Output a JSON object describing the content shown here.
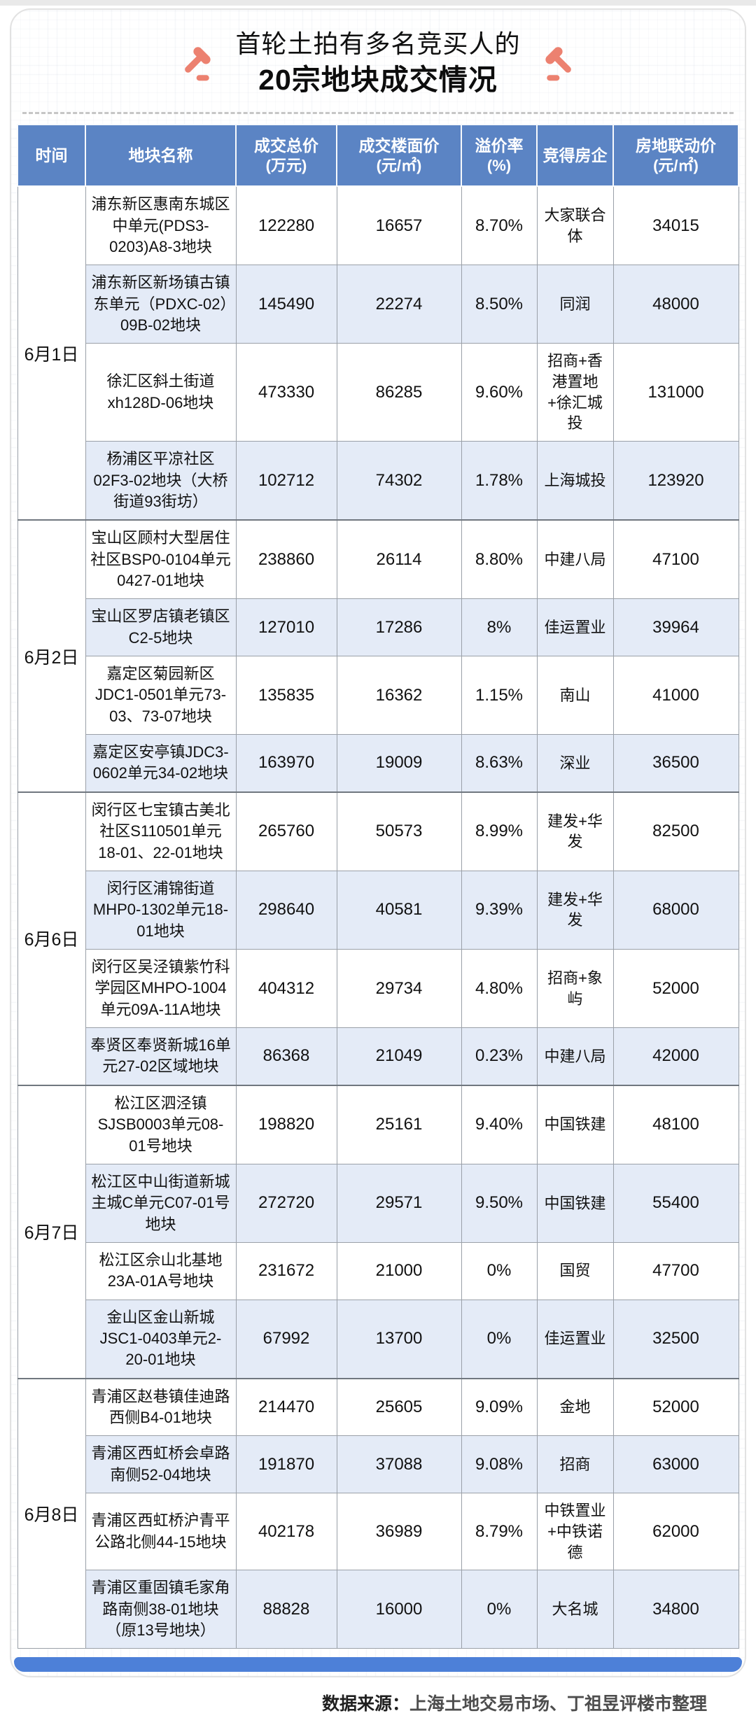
{
  "title": {
    "line1": "首轮土拍有多名竞买人的",
    "line2": "20宗地块成交情况"
  },
  "colors": {
    "accent_coral": "#ec8170",
    "header_blue": "#5b84c4",
    "alt_row_blue": "#e4ebf7",
    "bottom_bar_blue": "#4d80d8"
  },
  "table": {
    "headers": [
      {
        "label": "时间",
        "sub": ""
      },
      {
        "label": "地块名称",
        "sub": ""
      },
      {
        "label": "成交总价",
        "sub": "(万元)"
      },
      {
        "label": "成交楼面价",
        "sub": "(元/㎡)"
      },
      {
        "label": "溢价率",
        "sub": "(%)"
      },
      {
        "label": "竞得房企",
        "sub": ""
      },
      {
        "label": "房地联动价",
        "sub": "(元/㎡)"
      }
    ],
    "groups": [
      {
        "date": "6月1日",
        "rows": [
          {
            "name": "浦东新区惠南东城区中单元(PDS3-0203)A8-3地块",
            "total": "122280",
            "floor": "16657",
            "premium": "8.70%",
            "winner": "大家联合体",
            "linkage": "34015"
          },
          {
            "name": "浦东新区新场镇古镇东单元（PDXC-02）09B-02地块",
            "total": "145490",
            "floor": "22274",
            "premium": "8.50%",
            "winner": "同润",
            "linkage": "48000"
          },
          {
            "name": "徐汇区斜土街道xh128D-06地块",
            "total": "473330",
            "floor": "86285",
            "premium": "9.60%",
            "winner": "招商+香港置地+徐汇城投",
            "linkage": "131000"
          },
          {
            "name": "杨浦区平凉社区02F3-02地块（大桥街道93街坊）",
            "total": "102712",
            "floor": "74302",
            "premium": "1.78%",
            "winner": "上海城投",
            "linkage": "123920"
          }
        ]
      },
      {
        "date": "6月2日",
        "rows": [
          {
            "name": "宝山区顾村大型居住社区BSP0-0104单元0427-01地块",
            "total": "238860",
            "floor": "26114",
            "premium": "8.80%",
            "winner": "中建八局",
            "linkage": "47100"
          },
          {
            "name": "宝山区罗店镇老镇区C2-5地块",
            "total": "127010",
            "floor": "17286",
            "premium": "8%",
            "winner": "佳运置业",
            "linkage": "39964"
          },
          {
            "name": "嘉定区菊园新区JDC1-0501单元73-03、73-07地块",
            "total": "135835",
            "floor": "16362",
            "premium": "1.15%",
            "winner": "南山",
            "linkage": "41000"
          },
          {
            "name": "嘉定区安亭镇JDC3-0602单元34-02地块",
            "total": "163970",
            "floor": "19009",
            "premium": "8.63%",
            "winner": "深业",
            "linkage": "36500"
          }
        ]
      },
      {
        "date": "6月6日",
        "rows": [
          {
            "name": "闵行区七宝镇古美北社区S110501单元18-01、22-01地块",
            "total": "265760",
            "floor": "50573",
            "premium": "8.99%",
            "winner": "建发+华发",
            "linkage": "82500"
          },
          {
            "name": "闵行区浦锦街道MHP0-1302单元18-01地块",
            "total": "298640",
            "floor": "40581",
            "premium": "9.39%",
            "winner": "建发+华发",
            "linkage": "68000"
          },
          {
            "name": "闵行区吴泾镇紫竹科学园区MHPO-1004单元09A-11A地块",
            "total": "404312",
            "floor": "29734",
            "premium": "4.80%",
            "winner": "招商+象屿",
            "linkage": "52000"
          },
          {
            "name": "奉贤区奉贤新城16单元27-02区域地块",
            "total": "86368",
            "floor": "21049",
            "premium": "0.23%",
            "winner": "中建八局",
            "linkage": "42000"
          }
        ]
      },
      {
        "date": "6月7日",
        "rows": [
          {
            "name": "松江区泗泾镇SJSB0003单元08-01号地块",
            "total": "198820",
            "floor": "25161",
            "premium": "9.40%",
            "winner": "中国铁建",
            "linkage": "48100"
          },
          {
            "name": "松江区中山街道新城主城C单元C07-01号地块",
            "total": "272720",
            "floor": "29571",
            "premium": "9.50%",
            "winner": "中国铁建",
            "linkage": "55400"
          },
          {
            "name": "松江区佘山北基地23A-01A号地块",
            "total": "231672",
            "floor": "21000",
            "premium": "0%",
            "winner": "国贸",
            "linkage": "47700"
          },
          {
            "name": "金山区金山新城JSC1-0403单元2-20-01地块",
            "total": "67992",
            "floor": "13700",
            "premium": "0%",
            "winner": "佳运置业",
            "linkage": "32500"
          }
        ]
      },
      {
        "date": "6月8日",
        "rows": [
          {
            "name": "青浦区赵巷镇佳迪路西侧B4-01地块",
            "total": "214470",
            "floor": "25605",
            "premium": "9.09%",
            "winner": "金地",
            "linkage": "52000"
          },
          {
            "name": "青浦区西虹桥会卓路南侧52-04地块",
            "total": "191870",
            "floor": "37088",
            "premium": "9.08%",
            "winner": "招商",
            "linkage": "63000"
          },
          {
            "name": "青浦区西虹桥沪青平公路北侧44-15地块",
            "total": "402178",
            "floor": "36989",
            "premium": "8.79%",
            "winner": "中铁置业+中铁诺德",
            "linkage": "62000"
          },
          {
            "name": "青浦区重固镇毛家角路南侧38-01地块（原13号地块）",
            "total": "88828",
            "floor": "16000",
            "premium": "0%",
            "winner": "大名城",
            "linkage": "34800"
          }
        ]
      }
    ]
  },
  "footer": {
    "source_label": "数据来源：",
    "source_value": "上海土地交易市场、丁祖昱评楼市整理"
  }
}
